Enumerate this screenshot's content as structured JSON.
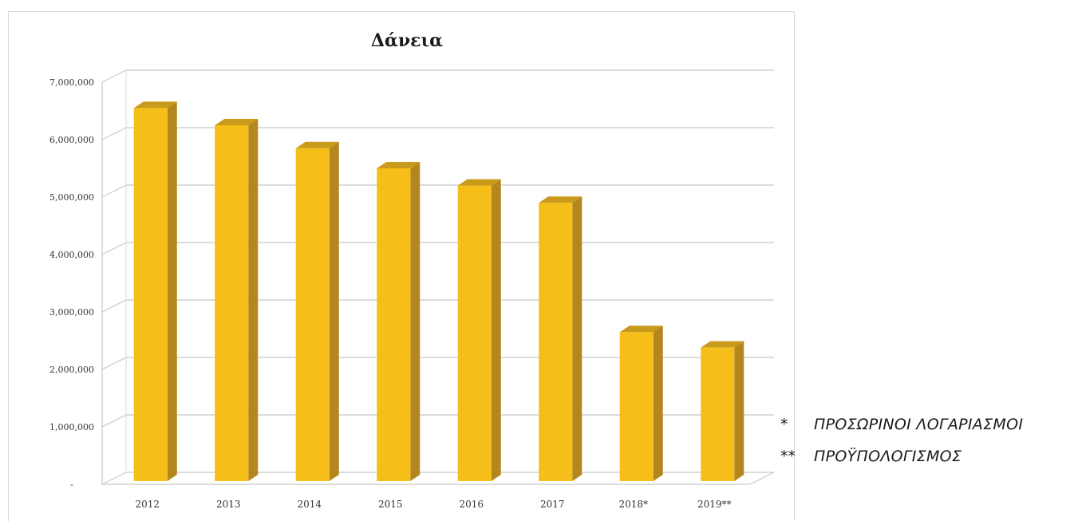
{
  "chart_data": {
    "type": "bar",
    "title": "Δάνεια",
    "categories": [
      "2012",
      "2013",
      "2014",
      "2015",
      "2016",
      "2017",
      "2018*",
      "2019**"
    ],
    "values": [
      6550000,
      6250000,
      5850000,
      5500000,
      5200000,
      4900000,
      2650000,
      2380000
    ],
    "ylim": [
      0,
      7000000
    ],
    "yticks": [
      0,
      1000000,
      2000000,
      3000000,
      4000000,
      5000000,
      6000000,
      7000000
    ],
    "ytick_labels": [
      "-",
      "1,000,000",
      "2,000,000",
      "3,000,000",
      "4,000,000",
      "5,000,000",
      "6,000,000",
      "7,000,000"
    ],
    "grid": true,
    "legend": "none",
    "style": "3d-column",
    "bar_color": "#F5BE18",
    "bar_side_color": "#B4871E",
    "bar_top_color": "#C99A1C",
    "gridline_color": "#c8c8c8"
  },
  "notes": [
    {
      "mark": "*",
      "text": "ΠΡΟΣΩΡΙΝΟΙ ΛΟΓΑΡΙΑΣΜΟΙ"
    },
    {
      "mark": "**",
      "text": "ΠΡΟΫΠΟΛΟΓΙΣΜΟΣ"
    }
  ]
}
